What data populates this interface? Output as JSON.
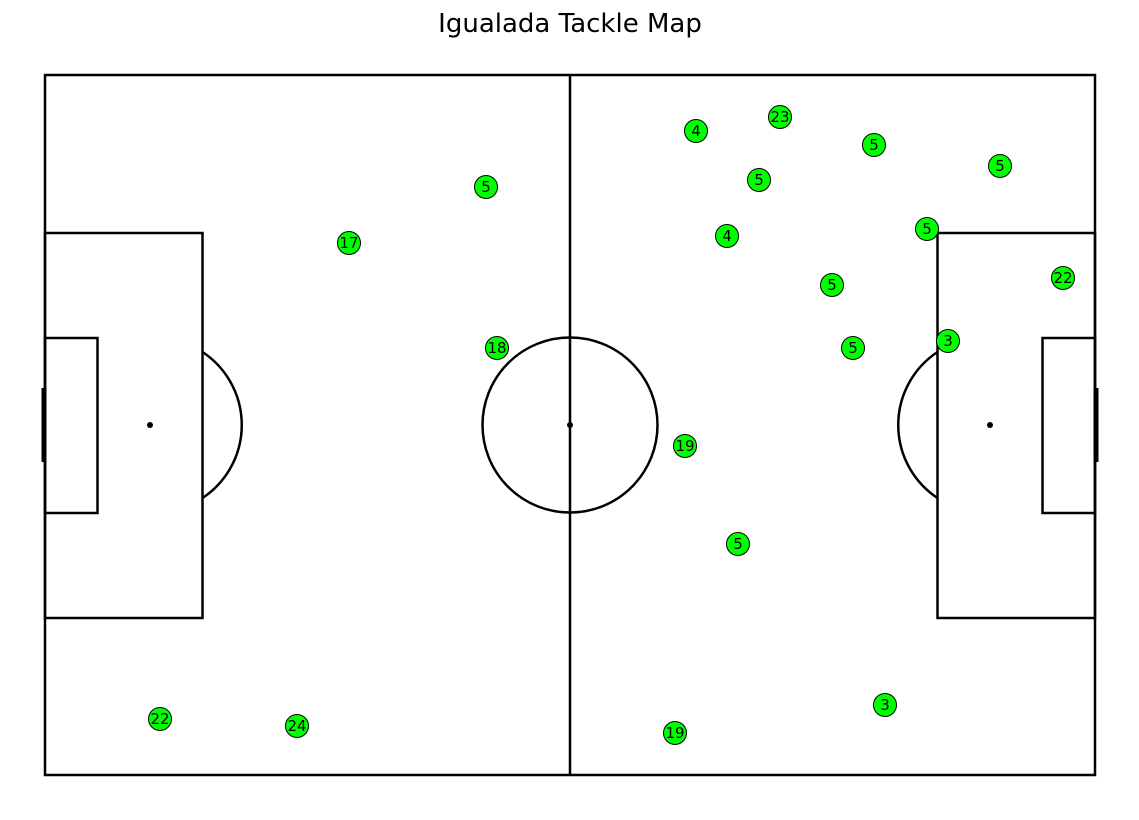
{
  "chart_data": {
    "type": "scatter",
    "title": "Igualada Tackle Map",
    "pitch": {
      "length": 105,
      "width": 70
    },
    "marker_color": "#00ff00",
    "points": [
      {
        "x": 44.1,
        "y": 58.8,
        "label": "5"
      },
      {
        "x": 30.4,
        "y": 53.2,
        "label": "17"
      },
      {
        "x": 45.2,
        "y": 42.7,
        "label": "18"
      },
      {
        "x": 11.5,
        "y": 5.6,
        "label": "22"
      },
      {
        "x": 25.2,
        "y": 4.9,
        "label": "24"
      },
      {
        "x": 65.1,
        "y": 64.4,
        "label": "4"
      },
      {
        "x": 73.5,
        "y": 65.8,
        "label": "23"
      },
      {
        "x": 82.9,
        "y": 63.0,
        "label": "5"
      },
      {
        "x": 95.5,
        "y": 60.9,
        "label": "5"
      },
      {
        "x": 71.4,
        "y": 59.5,
        "label": "5"
      },
      {
        "x": 68.2,
        "y": 53.9,
        "label": "4"
      },
      {
        "x": 88.2,
        "y": 54.6,
        "label": "5"
      },
      {
        "x": 101.8,
        "y": 49.7,
        "label": "22"
      },
      {
        "x": 78.7,
        "y": 49.0,
        "label": "5"
      },
      {
        "x": 80.8,
        "y": 42.7,
        "label": "5"
      },
      {
        "x": 90.3,
        "y": 43.4,
        "label": "3"
      },
      {
        "x": 64.0,
        "y": 32.9,
        "label": "19"
      },
      {
        "x": 69.3,
        "y": 23.1,
        "label": "5"
      },
      {
        "x": 84.0,
        "y": 7.0,
        "label": "3"
      },
      {
        "x": 63.0,
        "y": 4.2,
        "label": "19"
      }
    ]
  }
}
